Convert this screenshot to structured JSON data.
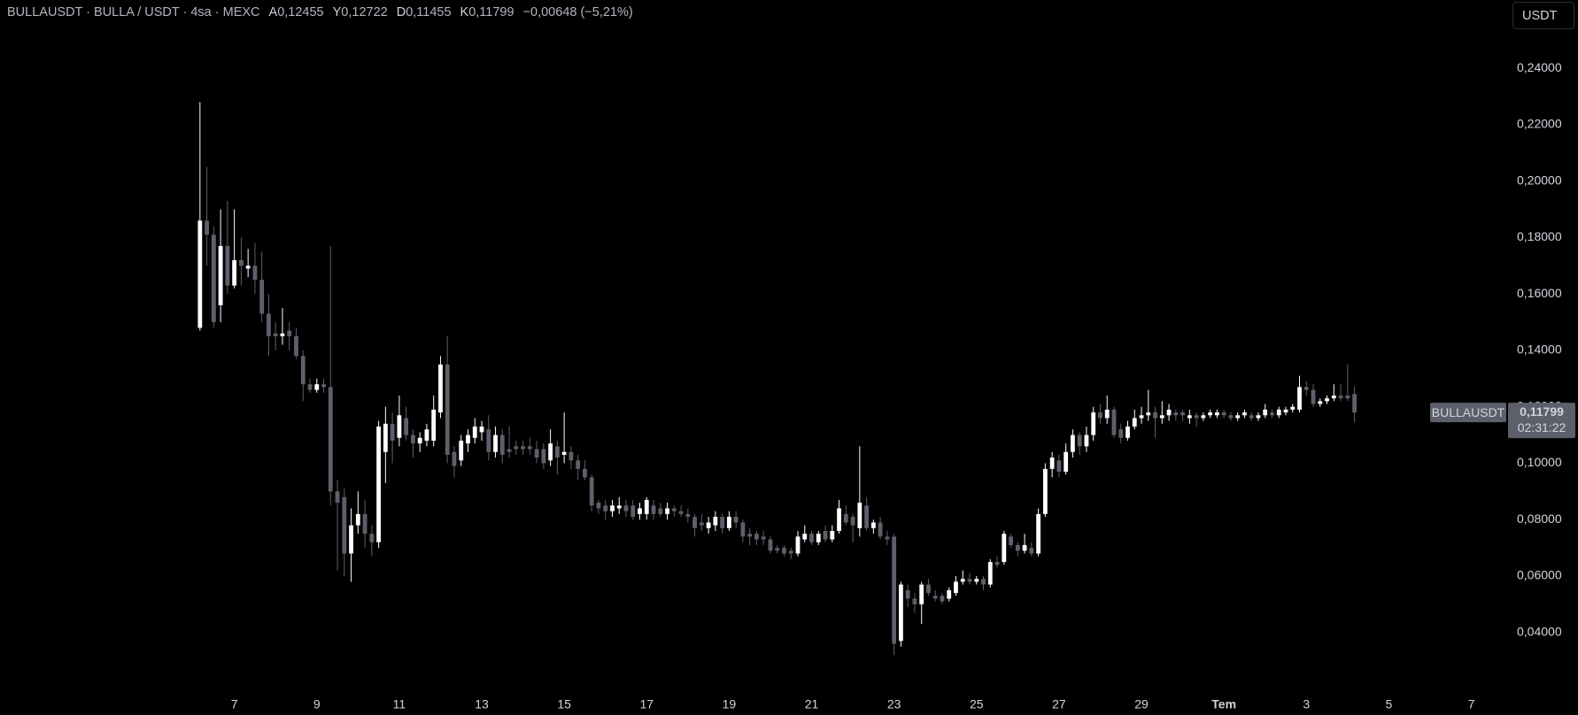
{
  "header": {
    "title": "BULLAUSDT · BULLA / USDT · 4sa · MEXC",
    "ohlc": [
      {
        "key": "A",
        "value": "0,12455"
      },
      {
        "key": "Y",
        "value": "0,12722"
      },
      {
        "key": "D",
        "value": "0,11455"
      },
      {
        "key": "K",
        "value": "0,11799"
      }
    ],
    "change": "−0,00648 (−5,21%)",
    "currency_button": "USDT"
  },
  "chart_data": {
    "type": "candlestick",
    "up_color": "#ffffff",
    "down_color": "#5d606b",
    "ylim": [
      0.0186,
      0.2642
    ],
    "yticks": [
      {
        "value": 0.24,
        "label": "0,24000"
      },
      {
        "value": 0.22,
        "label": "0,22000"
      },
      {
        "value": 0.2,
        "label": "0,20000"
      },
      {
        "value": 0.18,
        "label": "0,18000"
      },
      {
        "value": 0.16,
        "label": "0,16000"
      },
      {
        "value": 0.14,
        "label": "0,14000"
      },
      {
        "value": 0.12,
        "label": "0,12000"
      },
      {
        "value": 0.1,
        "label": "0,10000"
      },
      {
        "value": 0.08,
        "label": "0,08000"
      },
      {
        "value": 0.06,
        "label": "0,06000"
      },
      {
        "value": 0.04,
        "label": "0,04000"
      }
    ],
    "xlim": [
      -29.1,
      189.7
    ],
    "xticks": [
      {
        "value": 5,
        "label": "7"
      },
      {
        "value": 17,
        "label": "9"
      },
      {
        "value": 29,
        "label": "11"
      },
      {
        "value": 41,
        "label": "13"
      },
      {
        "value": 53,
        "label": "15"
      },
      {
        "value": 65,
        "label": "17"
      },
      {
        "value": 77,
        "label": "19"
      },
      {
        "value": 89,
        "label": "21"
      },
      {
        "value": 101,
        "label": "23"
      },
      {
        "value": 113,
        "label": "25"
      },
      {
        "value": 125,
        "label": "27"
      },
      {
        "value": 137,
        "label": "29"
      },
      {
        "value": 149,
        "label": "Tem"
      },
      {
        "value": 161,
        "label": "3"
      },
      {
        "value": 173,
        "label": "5"
      },
      {
        "value": 185,
        "label": "7"
      }
    ],
    "last_price": {
      "symbol": "BULLAUSDT",
      "value": 0.11799,
      "label": "0,11799",
      "countdown": "02:31:22"
    },
    "candles": [
      [
        0.148,
        0.228,
        0.147,
        0.186
      ],
      [
        0.186,
        0.205,
        0.17,
        0.181
      ],
      [
        0.181,
        0.184,
        0.148,
        0.15
      ],
      [
        0.156,
        0.19,
        0.15,
        0.177
      ],
      [
        0.177,
        0.193,
        0.16,
        0.163
      ],
      [
        0.163,
        0.19,
        0.162,
        0.172
      ],
      [
        0.172,
        0.18,
        0.163,
        0.17
      ],
      [
        0.169,
        0.176,
        0.166,
        0.17
      ],
      [
        0.17,
        0.178,
        0.16,
        0.165
      ],
      [
        0.165,
        0.175,
        0.15,
        0.153
      ],
      [
        0.153,
        0.16,
        0.138,
        0.145
      ],
      [
        0.146,
        0.15,
        0.14,
        0.145
      ],
      [
        0.145,
        0.155,
        0.142,
        0.146
      ],
      [
        0.147,
        0.15,
        0.14,
        0.145
      ],
      [
        0.145,
        0.148,
        0.137,
        0.138
      ],
      [
        0.138,
        0.14,
        0.122,
        0.128
      ],
      [
        0.128,
        0.13,
        0.125,
        0.126
      ],
      [
        0.126,
        0.13,
        0.125,
        0.128
      ],
      [
        0.128,
        0.13,
        0.125,
        0.127
      ],
      [
        0.127,
        0.177,
        0.085,
        0.09
      ],
      [
        0.09,
        0.094,
        0.062,
        0.086
      ],
      [
        0.088,
        0.091,
        0.06,
        0.068
      ],
      [
        0.068,
        0.084,
        0.058,
        0.078
      ],
      [
        0.078,
        0.09,
        0.075,
        0.082
      ],
      [
        0.082,
        0.087,
        0.07,
        0.075
      ],
      [
        0.075,
        0.078,
        0.067,
        0.072
      ],
      [
        0.072,
        0.115,
        0.07,
        0.113
      ],
      [
        0.104,
        0.12,
        0.093,
        0.114
      ],
      [
        0.114,
        0.118,
        0.1,
        0.108
      ],
      [
        0.109,
        0.124,
        0.106,
        0.117
      ],
      [
        0.116,
        0.12,
        0.108,
        0.11
      ],
      [
        0.11,
        0.112,
        0.102,
        0.107
      ],
      [
        0.107,
        0.111,
        0.104,
        0.109
      ],
      [
        0.108,
        0.114,
        0.106,
        0.112
      ],
      [
        0.108,
        0.124,
        0.106,
        0.119
      ],
      [
        0.118,
        0.138,
        0.116,
        0.135
      ],
      [
        0.135,
        0.145,
        0.1,
        0.103
      ],
      [
        0.104,
        0.106,
        0.095,
        0.099
      ],
      [
        0.101,
        0.11,
        0.099,
        0.108
      ],
      [
        0.107,
        0.112,
        0.104,
        0.11
      ],
      [
        0.109,
        0.116,
        0.107,
        0.113
      ],
      [
        0.111,
        0.115,
        0.108,
        0.113
      ],
      [
        0.112,
        0.117,
        0.101,
        0.104
      ],
      [
        0.104,
        0.113,
        0.102,
        0.11
      ],
      [
        0.11,
        0.112,
        0.1,
        0.103
      ],
      [
        0.105,
        0.113,
        0.102,
        0.104
      ],
      [
        0.106,
        0.108,
        0.103,
        0.105
      ],
      [
        0.106,
        0.108,
        0.103,
        0.105
      ],
      [
        0.106,
        0.109,
        0.103,
        0.105
      ],
      [
        0.105,
        0.108,
        0.1,
        0.102
      ],
      [
        0.105,
        0.107,
        0.098,
        0.1
      ],
      [
        0.101,
        0.112,
        0.099,
        0.107
      ],
      [
        0.106,
        0.108,
        0.096,
        0.102
      ],
      [
        0.103,
        0.118,
        0.1,
        0.104
      ],
      [
        0.104,
        0.106,
        0.098,
        0.101
      ],
      [
        0.101,
        0.103,
        0.094,
        0.098
      ],
      [
        0.098,
        0.101,
        0.094,
        0.095
      ],
      [
        0.095,
        0.096,
        0.083,
        0.085
      ],
      [
        0.086,
        0.087,
        0.082,
        0.084
      ],
      [
        0.085,
        0.087,
        0.08,
        0.083
      ],
      [
        0.083,
        0.087,
        0.081,
        0.085
      ],
      [
        0.084,
        0.088,
        0.082,
        0.085
      ],
      [
        0.085,
        0.087,
        0.081,
        0.083
      ],
      [
        0.085,
        0.087,
        0.08,
        0.081
      ],
      [
        0.082,
        0.086,
        0.08,
        0.084
      ],
      [
        0.082,
        0.088,
        0.08,
        0.087
      ],
      [
        0.085,
        0.087,
        0.08,
        0.082
      ],
      [
        0.084,
        0.086,
        0.081,
        0.082
      ],
      [
        0.082,
        0.086,
        0.08,
        0.084
      ],
      [
        0.084,
        0.085,
        0.081,
        0.083
      ],
      [
        0.083,
        0.085,
        0.081,
        0.082
      ],
      [
        0.082,
        0.084,
        0.079,
        0.081
      ],
      [
        0.081,
        0.082,
        0.074,
        0.077
      ],
      [
        0.079,
        0.082,
        0.076,
        0.078
      ],
      [
        0.077,
        0.081,
        0.075,
        0.079
      ],
      [
        0.078,
        0.083,
        0.076,
        0.081
      ],
      [
        0.081,
        0.082,
        0.075,
        0.077
      ],
      [
        0.077,
        0.083,
        0.076,
        0.081
      ],
      [
        0.081,
        0.083,
        0.077,
        0.079
      ],
      [
        0.079,
        0.08,
        0.072,
        0.074
      ],
      [
        0.075,
        0.077,
        0.071,
        0.074
      ],
      [
        0.075,
        0.076,
        0.071,
        0.073
      ],
      [
        0.074,
        0.076,
        0.071,
        0.073
      ],
      [
        0.073,
        0.074,
        0.068,
        0.069
      ],
      [
        0.07,
        0.071,
        0.068,
        0.069
      ],
      [
        0.07,
        0.071,
        0.067,
        0.068
      ],
      [
        0.069,
        0.07,
        0.066,
        0.068
      ],
      [
        0.068,
        0.076,
        0.067,
        0.074
      ],
      [
        0.073,
        0.078,
        0.072,
        0.075
      ],
      [
        0.075,
        0.076,
        0.071,
        0.072
      ],
      [
        0.072,
        0.076,
        0.071,
        0.075
      ],
      [
        0.076,
        0.078,
        0.072,
        0.073
      ],
      [
        0.073,
        0.078,
        0.072,
        0.076
      ],
      [
        0.076,
        0.087,
        0.075,
        0.084
      ],
      [
        0.082,
        0.085,
        0.078,
        0.079
      ],
      [
        0.081,
        0.082,
        0.072,
        0.078
      ],
      [
        0.077,
        0.106,
        0.074,
        0.086
      ],
      [
        0.085,
        0.088,
        0.076,
        0.077
      ],
      [
        0.077,
        0.08,
        0.075,
        0.079
      ],
      [
        0.079,
        0.081,
        0.073,
        0.074
      ],
      [
        0.074,
        0.076,
        0.071,
        0.073
      ],
      [
        0.074,
        0.075,
        0.032,
        0.036
      ],
      [
        0.037,
        0.058,
        0.035,
        0.057
      ],
      [
        0.055,
        0.057,
        0.049,
        0.052
      ],
      [
        0.052,
        0.054,
        0.047,
        0.05
      ],
      [
        0.05,
        0.058,
        0.043,
        0.057
      ],
      [
        0.057,
        0.059,
        0.053,
        0.054
      ],
      [
        0.053,
        0.055,
        0.051,
        0.052
      ],
      [
        0.053,
        0.054,
        0.05,
        0.051
      ],
      [
        0.052,
        0.056,
        0.051,
        0.055
      ],
      [
        0.054,
        0.06,
        0.053,
        0.058
      ],
      [
        0.058,
        0.062,
        0.057,
        0.059
      ],
      [
        0.059,
        0.061,
        0.057,
        0.058
      ],
      [
        0.058,
        0.06,
        0.057,
        0.059
      ],
      [
        0.059,
        0.06,
        0.055,
        0.057
      ],
      [
        0.057,
        0.066,
        0.056,
        0.065
      ],
      [
        0.065,
        0.067,
        0.063,
        0.064
      ],
      [
        0.065,
        0.076,
        0.064,
        0.075
      ],
      [
        0.074,
        0.075,
        0.07,
        0.071
      ],
      [
        0.071,
        0.072,
        0.067,
        0.069
      ],
      [
        0.069,
        0.075,
        0.068,
        0.071
      ],
      [
        0.07,
        0.072,
        0.067,
        0.068
      ],
      [
        0.068,
        0.084,
        0.067,
        0.082
      ],
      [
        0.082,
        0.1,
        0.081,
        0.098
      ],
      [
        0.098,
        0.104,
        0.095,
        0.102
      ],
      [
        0.101,
        0.103,
        0.095,
        0.097
      ],
      [
        0.097,
        0.107,
        0.096,
        0.104
      ],
      [
        0.104,
        0.112,
        0.102,
        0.11
      ],
      [
        0.11,
        0.111,
        0.103,
        0.106
      ],
      [
        0.106,
        0.113,
        0.104,
        0.11
      ],
      [
        0.11,
        0.12,
        0.108,
        0.118
      ],
      [
        0.118,
        0.121,
        0.114,
        0.116
      ],
      [
        0.116,
        0.124,
        0.114,
        0.119
      ],
      [
        0.119,
        0.12,
        0.109,
        0.11
      ],
      [
        0.112,
        0.114,
        0.107,
        0.109
      ],
      [
        0.109,
        0.115,
        0.108,
        0.113
      ],
      [
        0.113,
        0.119,
        0.112,
        0.116
      ],
      [
        0.116,
        0.12,
        0.114,
        0.117
      ],
      [
        0.117,
        0.126,
        0.115,
        0.118
      ],
      [
        0.118,
        0.12,
        0.109,
        0.116
      ],
      [
        0.116,
        0.122,
        0.114,
        0.117
      ],
      [
        0.117,
        0.121,
        0.115,
        0.119
      ],
      [
        0.118,
        0.119,
        0.115,
        0.117
      ],
      [
        0.118,
        0.119,
        0.115,
        0.117
      ],
      [
        0.116,
        0.119,
        0.114,
        0.117
      ],
      [
        0.117,
        0.118,
        0.113,
        0.116
      ],
      [
        0.116,
        0.118,
        0.115,
        0.117
      ],
      [
        0.117,
        0.119,
        0.116,
        0.118
      ],
      [
        0.117,
        0.119,
        0.116,
        0.118
      ],
      [
        0.118,
        0.119,
        0.116,
        0.117
      ],
      [
        0.117,
        0.118,
        0.115,
        0.116
      ],
      [
        0.116,
        0.118,
        0.115,
        0.117
      ],
      [
        0.117,
        0.119,
        0.116,
        0.118
      ],
      [
        0.117,
        0.118,
        0.115,
        0.116
      ],
      [
        0.116,
        0.118,
        0.115,
        0.117
      ],
      [
        0.117,
        0.121,
        0.116,
        0.119
      ],
      [
        0.118,
        0.119,
        0.116,
        0.117
      ],
      [
        0.117,
        0.12,
        0.116,
        0.119
      ],
      [
        0.118,
        0.12,
        0.117,
        0.119
      ],
      [
        0.119,
        0.121,
        0.118,
        0.12
      ],
      [
        0.119,
        0.131,
        0.118,
        0.127
      ],
      [
        0.127,
        0.129,
        0.124,
        0.126
      ],
      [
        0.126,
        0.128,
        0.12,
        0.121
      ],
      [
        0.121,
        0.123,
        0.12,
        0.122
      ],
      [
        0.122,
        0.124,
        0.121,
        0.123
      ],
      [
        0.123,
        0.128,
        0.122,
        0.124
      ],
      [
        0.124,
        0.128,
        0.122,
        0.123
      ],
      [
        0.124,
        0.135,
        0.122,
        0.123
      ],
      [
        0.12455,
        0.12722,
        0.11455,
        0.11799
      ]
    ]
  }
}
